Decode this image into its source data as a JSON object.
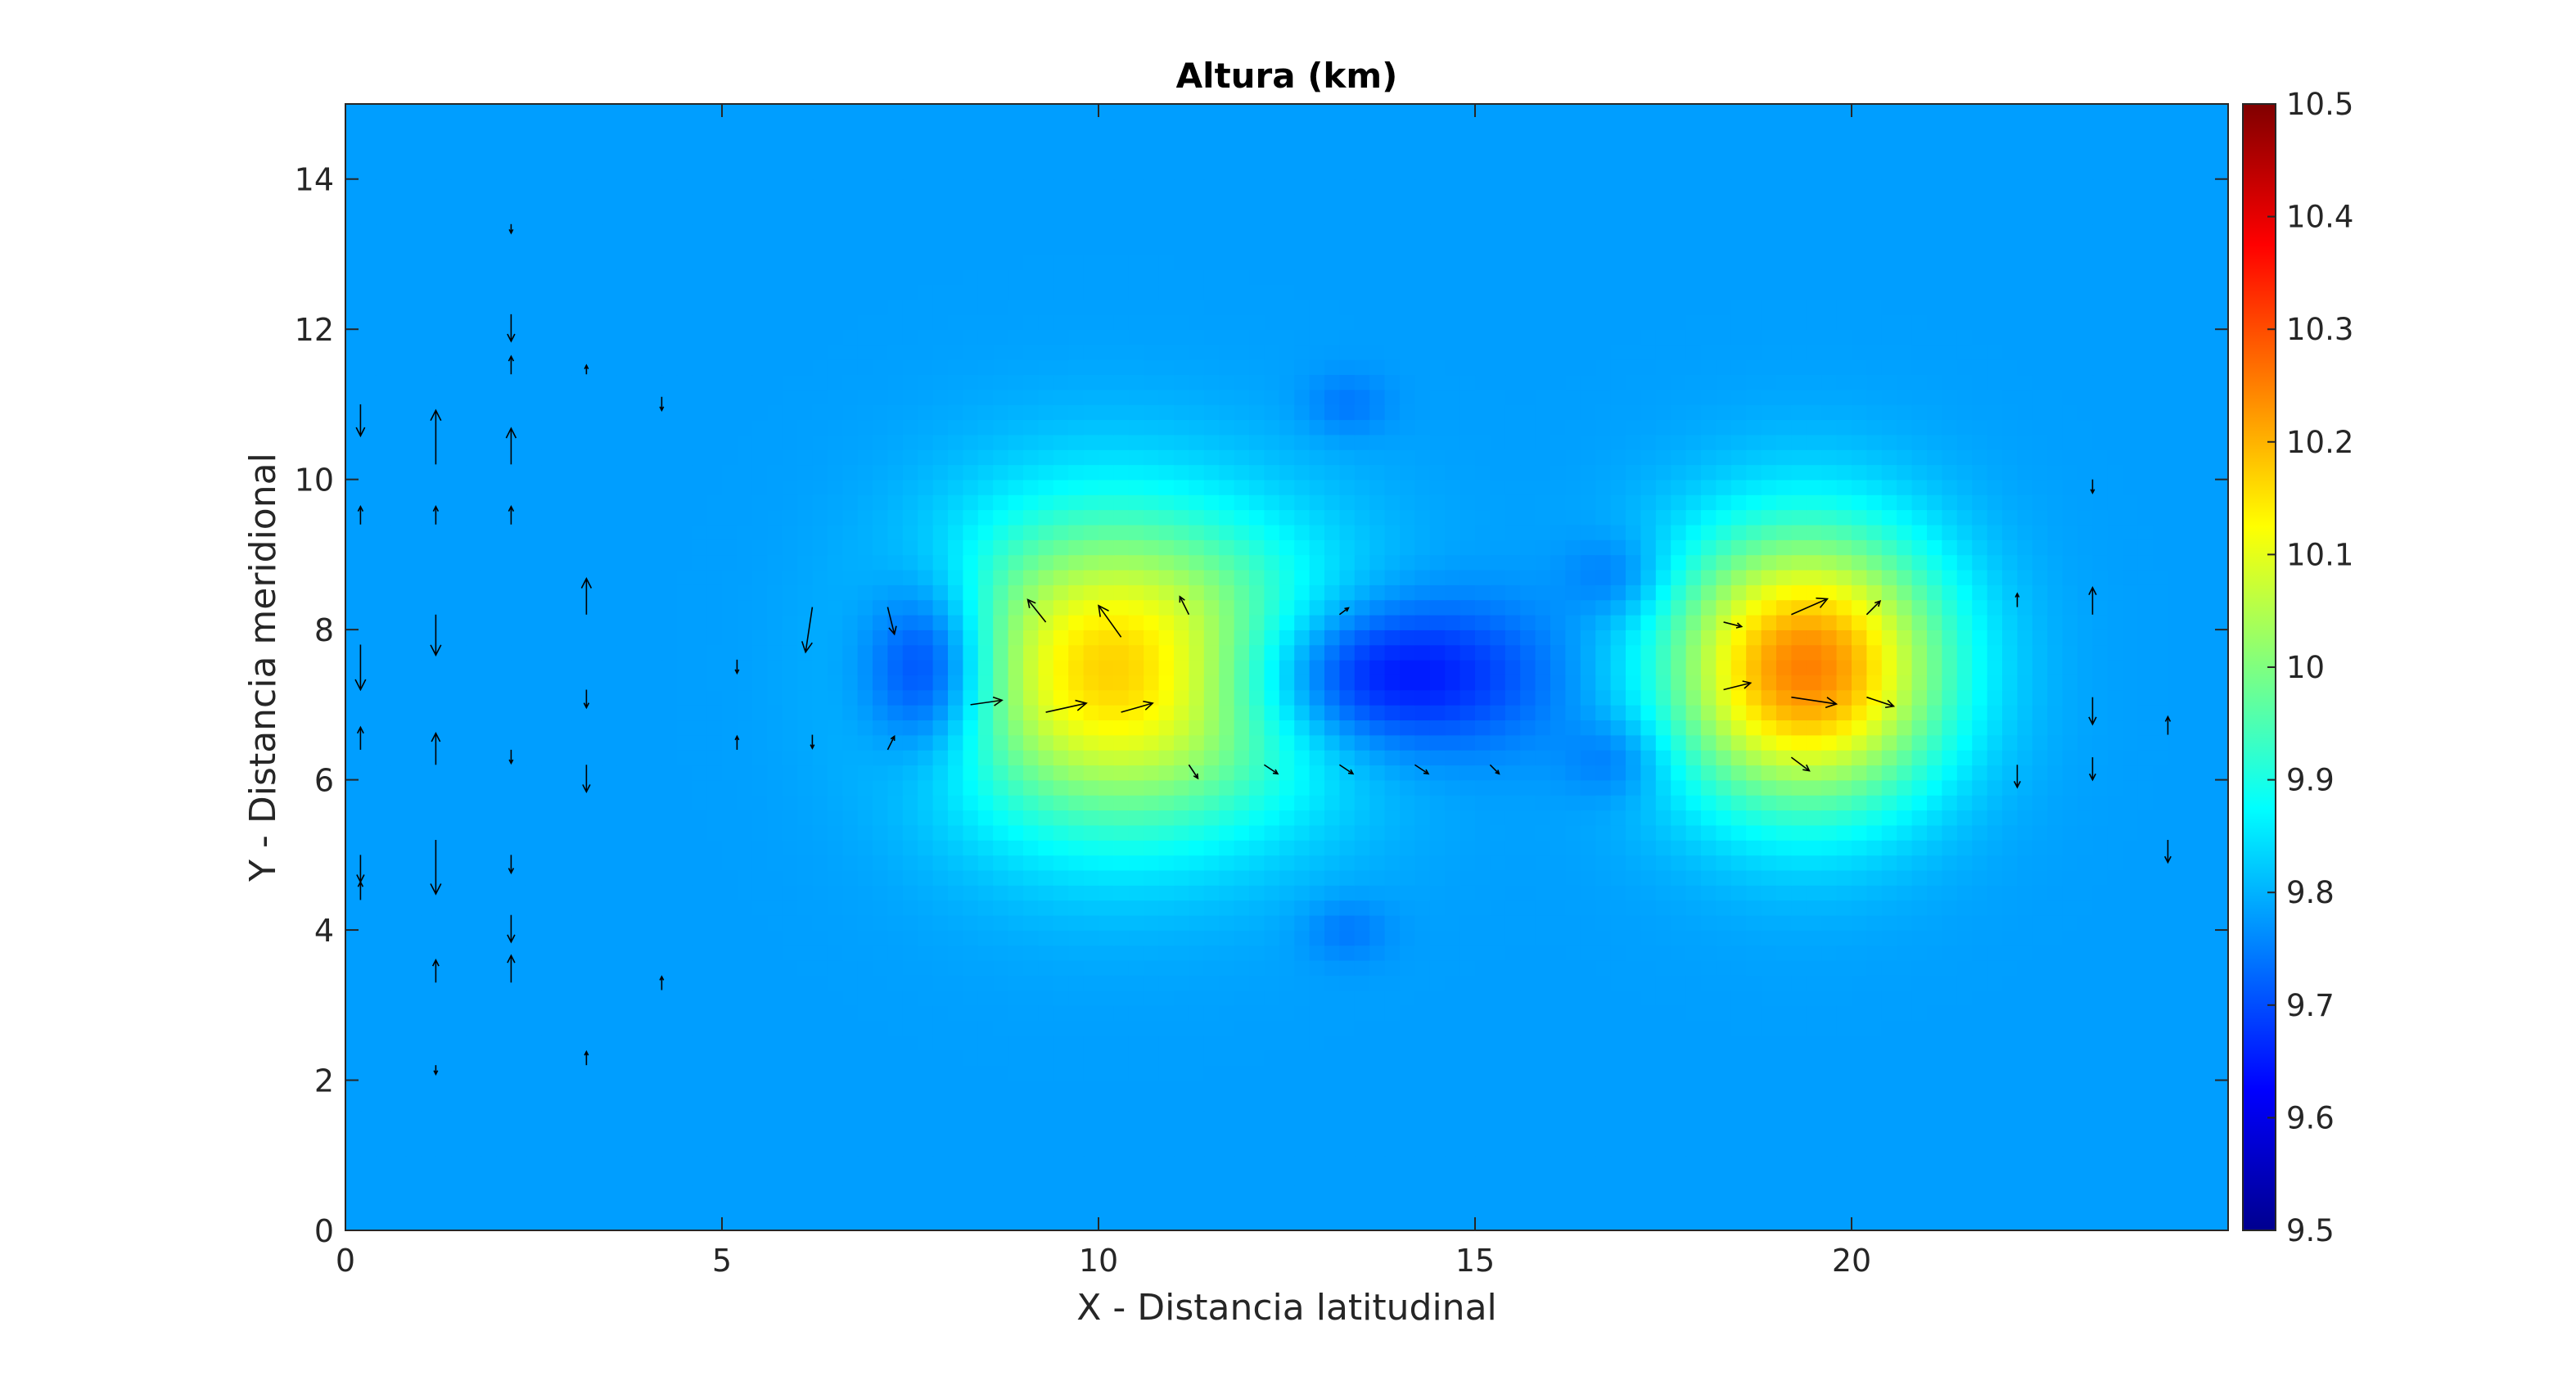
{
  "chart_data": {
    "type": "heatmap",
    "title": "Altura (km)",
    "xlabel": "X - Distancia latitudinal",
    "ylabel": "Y - Distancia meridional",
    "xlim": [
      0,
      25
    ],
    "ylim": [
      0,
      15
    ],
    "x_ticks": [
      "0",
      "5",
      "10",
      "15",
      "20"
    ],
    "x_tick_values": [
      0,
      5,
      10,
      15,
      20
    ],
    "y_ticks": [
      "0",
      "2",
      "4",
      "6",
      "8",
      "10",
      "12",
      "14"
    ],
    "y_tick_values": [
      0,
      2,
      4,
      6,
      8,
      10,
      12,
      14
    ],
    "colorbar": {
      "range": [
        9.5,
        10.5
      ],
      "colormap": "jet",
      "ticks": [
        "9.5",
        "9.6",
        "9.7",
        "9.8",
        "9.9",
        "10",
        "10.1",
        "10.2",
        "10.3",
        "10.4",
        "10.5"
      ],
      "tick_values": [
        9.5,
        9.6,
        9.7,
        9.8,
        9.9,
        10,
        10.1,
        10.2,
        10.3,
        10.4,
        10.5
      ]
    },
    "background_value": 9.78,
    "features": [
      {
        "kind": "high",
        "x": 19.4,
        "y": 7.5,
        "peak": 10.25,
        "sx": 1.3,
        "sy": 1.3
      },
      {
        "kind": "high",
        "x": 9.8,
        "y": 7.5,
        "peak": 10.06,
        "sx": 1.5,
        "sy": 1.5
      },
      {
        "kind": "high",
        "x": 11.5,
        "y": 7.4,
        "peak": 9.97,
        "sx": 1.6,
        "sy": 1.4
      },
      {
        "kind": "low",
        "x": 7.8,
        "y": 7.5,
        "peak": 9.6,
        "sx": 0.6,
        "sy": 0.8
      },
      {
        "kind": "low",
        "x": 13.5,
        "y": 7.4,
        "peak": 9.58,
        "sx": 1.5,
        "sy": 0.7
      },
      {
        "kind": "low",
        "x": 16.9,
        "y": 8.7,
        "peak": 9.72,
        "sx": 0.5,
        "sy": 0.4
      },
      {
        "kind": "low",
        "x": 16.9,
        "y": 6.3,
        "peak": 9.72,
        "sx": 0.5,
        "sy": 0.4
      },
      {
        "kind": "low",
        "x": 13.3,
        "y": 11.0,
        "peak": 9.74,
        "sx": 0.4,
        "sy": 0.3
      },
      {
        "kind": "low",
        "x": 13.3,
        "y": 4.0,
        "peak": 9.74,
        "sx": 0.4,
        "sy": 0.3
      }
    ],
    "quiver": [
      {
        "x": 0.2,
        "y": 11.0,
        "u": 0,
        "v": -0.7
      },
      {
        "x": 0.2,
        "y": 9.4,
        "u": 0,
        "v": 0.4
      },
      {
        "x": 0.2,
        "y": 7.8,
        "u": 0,
        "v": -1.0
      },
      {
        "x": 0.2,
        "y": 6.4,
        "u": 0,
        "v": 0.5
      },
      {
        "x": 0.2,
        "y": 5.0,
        "u": 0,
        "v": -0.6
      },
      {
        "x": 0.2,
        "y": 4.4,
        "u": 0,
        "v": 0.4
      },
      {
        "x": 1.2,
        "y": 10.2,
        "u": 0,
        "v": 1.2
      },
      {
        "x": 1.2,
        "y": 9.4,
        "u": 0,
        "v": 0.4
      },
      {
        "x": 1.2,
        "y": 8.2,
        "u": 0,
        "v": -0.9
      },
      {
        "x": 1.2,
        "y": 6.2,
        "u": 0,
        "v": 0.7
      },
      {
        "x": 1.2,
        "y": 5.2,
        "u": 0,
        "v": -1.2
      },
      {
        "x": 1.2,
        "y": 3.3,
        "u": 0,
        "v": 0.5
      },
      {
        "x": 1.2,
        "y": 2.2,
        "u": 0,
        "v": -0.2
      },
      {
        "x": 2.2,
        "y": 13.4,
        "u": 0,
        "v": -0.2
      },
      {
        "x": 2.2,
        "y": 12.2,
        "u": 0,
        "v": -0.6
      },
      {
        "x": 2.2,
        "y": 11.4,
        "u": 0,
        "v": 0.4
      },
      {
        "x": 2.2,
        "y": 10.2,
        "u": 0,
        "v": 0.8
      },
      {
        "x": 2.2,
        "y": 9.4,
        "u": 0,
        "v": 0.4
      },
      {
        "x": 2.2,
        "y": 6.4,
        "u": 0,
        "v": -0.3
      },
      {
        "x": 2.2,
        "y": 5.0,
        "u": 0,
        "v": -0.4
      },
      {
        "x": 2.2,
        "y": 4.2,
        "u": 0,
        "v": -0.6
      },
      {
        "x": 2.2,
        "y": 3.3,
        "u": 0,
        "v": 0.6
      },
      {
        "x": 3.2,
        "y": 11.4,
        "u": 0,
        "v": 0.2
      },
      {
        "x": 3.2,
        "y": 8.2,
        "u": 0,
        "v": 0.8
      },
      {
        "x": 3.2,
        "y": 7.2,
        "u": 0,
        "v": -0.4
      },
      {
        "x": 3.2,
        "y": 6.2,
        "u": 0,
        "v": -0.6
      },
      {
        "x": 3.2,
        "y": 2.2,
        "u": 0,
        "v": 0.3
      },
      {
        "x": 4.2,
        "y": 11.1,
        "u": 0,
        "v": -0.3
      },
      {
        "x": 4.2,
        "y": 3.2,
        "u": 0,
        "v": 0.3
      },
      {
        "x": 5.2,
        "y": 7.6,
        "u": 0,
        "v": -0.3
      },
      {
        "x": 5.2,
        "y": 6.4,
        "u": 0,
        "v": 0.3
      },
      {
        "x": 6.2,
        "y": 8.3,
        "u": -0.15,
        "v": -1.0
      },
      {
        "x": 6.2,
        "y": 6.6,
        "u": 0,
        "v": -0.3
      },
      {
        "x": 7.2,
        "y": 8.3,
        "u": 0.15,
        "v": -0.6
      },
      {
        "x": 7.2,
        "y": 6.4,
        "u": 0.15,
        "v": 0.3
      },
      {
        "x": 8.3,
        "y": 7.0,
        "u": 0.7,
        "v": 0.1
      },
      {
        "x": 9.3,
        "y": 8.1,
        "u": -0.4,
        "v": 0.5
      },
      {
        "x": 9.3,
        "y": 6.9,
        "u": 0.9,
        "v": 0.2
      },
      {
        "x": 10.3,
        "y": 7.9,
        "u": -0.5,
        "v": 0.7
      },
      {
        "x": 10.3,
        "y": 6.9,
        "u": 0.7,
        "v": 0.2
      },
      {
        "x": 11.2,
        "y": 8.2,
        "u": -0.2,
        "v": 0.4
      },
      {
        "x": 11.2,
        "y": 6.2,
        "u": 0.2,
        "v": -0.3
      },
      {
        "x": 12.2,
        "y": 6.2,
        "u": 0.3,
        "v": -0.2
      },
      {
        "x": 13.2,
        "y": 8.2,
        "u": 0.2,
        "v": 0.15
      },
      {
        "x": 13.2,
        "y": 6.2,
        "u": 0.3,
        "v": -0.2
      },
      {
        "x": 14.2,
        "y": 6.2,
        "u": 0.3,
        "v": -0.2
      },
      {
        "x": 15.2,
        "y": 6.2,
        "u": 0.2,
        "v": -0.2
      },
      {
        "x": 18.3,
        "y": 7.2,
        "u": 0.6,
        "v": 0.15
      },
      {
        "x": 18.3,
        "y": 8.1,
        "u": 0.4,
        "v": -0.1
      },
      {
        "x": 19.2,
        "y": 8.2,
        "u": 0.8,
        "v": 0.35
      },
      {
        "x": 19.2,
        "y": 7.1,
        "u": 1.0,
        "v": -0.15
      },
      {
        "x": 19.2,
        "y": 6.3,
        "u": 0.4,
        "v": -0.3
      },
      {
        "x": 20.2,
        "y": 8.2,
        "u": 0.3,
        "v": 0.3
      },
      {
        "x": 20.2,
        "y": 7.1,
        "u": 0.6,
        "v": -0.2
      },
      {
        "x": 22.2,
        "y": 8.3,
        "u": 0,
        "v": 0.3
      },
      {
        "x": 22.2,
        "y": 6.2,
        "u": 0,
        "v": -0.5
      },
      {
        "x": 23.2,
        "y": 10.0,
        "u": 0,
        "v": -0.3
      },
      {
        "x": 23.2,
        "y": 8.2,
        "u": 0,
        "v": 0.6
      },
      {
        "x": 23.2,
        "y": 7.1,
        "u": 0,
        "v": -0.6
      },
      {
        "x": 23.2,
        "y": 6.3,
        "u": 0,
        "v": -0.5
      },
      {
        "x": 24.2,
        "y": 6.6,
        "u": 0,
        "v": 0.4
      },
      {
        "x": 24.2,
        "y": 5.2,
        "u": 0,
        "v": -0.5
      }
    ]
  }
}
